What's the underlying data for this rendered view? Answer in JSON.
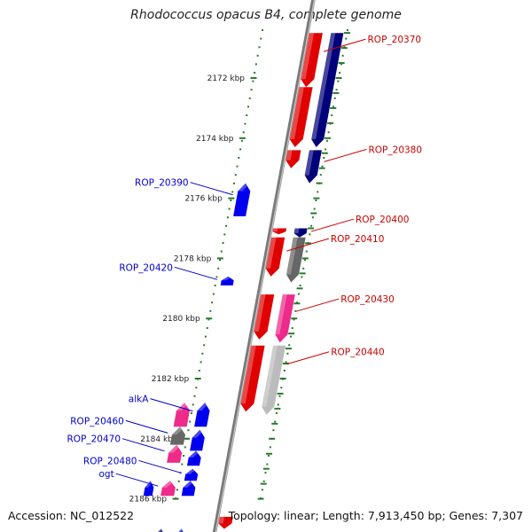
{
  "title": "Rhodococcus opacus B4, complete genome",
  "footer": {
    "accession": "Accession: NC_012522",
    "summary": "Topology: linear; Length: 7,913,450 bp; Genes: 7,307"
  },
  "colors": {
    "tick": "#2a7a2a",
    "backbone": "#7a7a7a",
    "red": "#e00000",
    "navy": "#00007a",
    "blue": "#0000ee",
    "pink": "#ee2a8a",
    "gray": "#666666",
    "lightgray": "#bbbbbb",
    "label_right": "#cc0000",
    "label_left": "#0000cc"
  },
  "ruler": [
    {
      "label": "2172 kbp",
      "kbp": 2172
    },
    {
      "label": "2174 kbp",
      "kbp": 2174
    },
    {
      "label": "2176 kbp",
      "kbp": 2176
    },
    {
      "label": "2178 kbp",
      "kbp": 2178
    },
    {
      "label": "2180 kbp",
      "kbp": 2180
    },
    {
      "label": "2182 kbp",
      "kbp": 2182
    },
    {
      "label": "2184 kbp",
      "kbp": 2184
    },
    {
      "label": "2186 kbp",
      "kbp": 2186
    }
  ],
  "genes": [
    {
      "name": "ROP_20370",
      "start_kbp": 2170.5,
      "end_kbp": 2172.3,
      "lane": "plus1",
      "color": "red",
      "label_side": "right",
      "labeled": true
    },
    {
      "name": "",
      "start_kbp": 2170.5,
      "end_kbp": 2174.3,
      "lane": "plus2",
      "color": "navy",
      "label_side": "right",
      "labeled": false
    },
    {
      "name": "",
      "start_kbp": 2172.3,
      "end_kbp": 2174.3,
      "lane": "plus1",
      "color": "red",
      "label_side": "right",
      "labeled": false
    },
    {
      "name": "",
      "start_kbp": 2174.4,
      "end_kbp": 2175.0,
      "lane": "plus1",
      "color": "red",
      "label_side": "right",
      "labeled": false
    },
    {
      "name": "ROP_20380",
      "start_kbp": 2174.4,
      "end_kbp": 2175.5,
      "lane": "plus2",
      "color": "navy",
      "label_side": "right",
      "labeled": true
    },
    {
      "name": "ROP_20390",
      "start_kbp": 2175.5,
      "end_kbp": 2176.6,
      "lane": "minus1",
      "color": "blue",
      "label_side": "left",
      "labeled": true
    },
    {
      "name": "",
      "start_kbp": 2177.0,
      "end_kbp": 2177.2,
      "lane": "plus1",
      "color": "red",
      "label_side": "right",
      "labeled": false
    },
    {
      "name": "ROP_20400",
      "start_kbp": 2177.0,
      "end_kbp": 2177.3,
      "lane": "plus2",
      "color": "navy",
      "label_side": "right",
      "labeled": true
    },
    {
      "name": "ROP_20410",
      "start_kbp": 2177.3,
      "end_kbp": 2178.6,
      "lane": "plus1",
      "color": "red",
      "label_side": "right",
      "labeled": true
    },
    {
      "name": "",
      "start_kbp": 2177.3,
      "end_kbp": 2178.8,
      "lane": "plus2",
      "color": "gray",
      "label_side": "right",
      "labeled": false
    },
    {
      "name": "ROP_20420",
      "start_kbp": 2178.6,
      "end_kbp": 2178.9,
      "lane": "minus1",
      "color": "blue",
      "label_side": "left",
      "labeled": true
    },
    {
      "name": "",
      "start_kbp": 2179.2,
      "end_kbp": 2180.7,
      "lane": "plus1",
      "color": "red",
      "label_side": "right",
      "labeled": false
    },
    {
      "name": "ROP_20430",
      "start_kbp": 2179.2,
      "end_kbp": 2180.8,
      "lane": "plus2",
      "color": "pink",
      "label_side": "right",
      "labeled": true
    },
    {
      "name": "",
      "start_kbp": 2180.9,
      "end_kbp": 2183.1,
      "lane": "plus1",
      "color": "red",
      "label_side": "right",
      "labeled": false
    },
    {
      "name": "ROP_20440",
      "start_kbp": 2180.9,
      "end_kbp": 2183.2,
      "lane": "plus2",
      "color": "lightgray",
      "label_side": "right",
      "labeled": true
    },
    {
      "name": "alkA",
      "start_kbp": 2182.8,
      "end_kbp": 2183.6,
      "lane": "minus1",
      "color": "blue",
      "label_side": "left",
      "labeled": true
    },
    {
      "name": "",
      "start_kbp": 2182.8,
      "end_kbp": 2183.6,
      "lane": "minus2",
      "color": "pink",
      "label_side": "left",
      "labeled": false
    },
    {
      "name": "ROP_20460",
      "start_kbp": 2183.6,
      "end_kbp": 2184.2,
      "lane": "minus2",
      "color": "gray",
      "label_side": "left",
      "labeled": true
    },
    {
      "name": "",
      "start_kbp": 2183.7,
      "end_kbp": 2184.4,
      "lane": "minus1",
      "color": "blue",
      "label_side": "left",
      "labeled": false
    },
    {
      "name": "ROP_20470",
      "start_kbp": 2184.2,
      "end_kbp": 2184.8,
      "lane": "minus2",
      "color": "pink",
      "label_side": "left",
      "labeled": true
    },
    {
      "name": "",
      "start_kbp": 2184.4,
      "end_kbp": 2184.9,
      "lane": "minus1",
      "color": "blue",
      "label_side": "left",
      "labeled": false
    },
    {
      "name": "ROP_20480",
      "start_kbp": 2185.0,
      "end_kbp": 2185.4,
      "lane": "minus1",
      "color": "blue",
      "label_side": "left",
      "labeled": true
    },
    {
      "name": "ogt",
      "start_kbp": 2185.4,
      "end_kbp": 2185.9,
      "lane": "minus2",
      "color": "pink",
      "label_side": "left",
      "labeled": true
    },
    {
      "name": "",
      "start_kbp": 2185.4,
      "end_kbp": 2185.9,
      "lane": "minus1",
      "color": "blue",
      "label_side": "left",
      "labeled": false
    },
    {
      "name": "",
      "start_kbp": 2185.4,
      "end_kbp": 2185.9,
      "lane": "minus0",
      "color": "blue",
      "label_side": "left",
      "labeled": false
    },
    {
      "name": "",
      "start_kbp": 2186.6,
      "end_kbp": 2187.0,
      "lane": "plus1",
      "color": "red",
      "label_side": "right",
      "labeled": false
    },
    {
      "name": "",
      "start_kbp": 2187.0,
      "end_kbp": 2187.8,
      "lane": "minus2",
      "color": "navy",
      "label_side": "left",
      "labeled": false
    },
    {
      "name": "",
      "start_kbp": 2187.0,
      "end_kbp": 2187.8,
      "lane": "minus1",
      "color": "blue",
      "label_side": "left",
      "labeled": false
    }
  ]
}
